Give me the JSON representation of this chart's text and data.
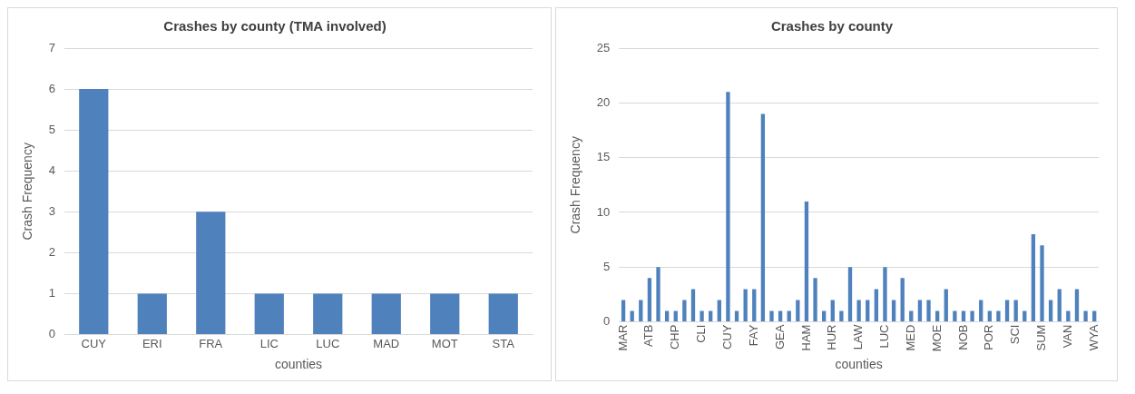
{
  "chart_data": [
    {
      "type": "bar",
      "title": "Crashes by county (TMA involved)",
      "xlabel": "counties",
      "ylabel": "Crash Frequency",
      "categories": [
        "CUY",
        "ERI",
        "FRA",
        "LIC",
        "LUC",
        "MAD",
        "MOT",
        "STA"
      ],
      "values": [
        6,
        1,
        3,
        1,
        1,
        1,
        1,
        1
      ],
      "color": "#4f81bd",
      "ylim": [
        0,
        7
      ],
      "yticks": [
        0,
        1,
        2,
        3,
        4,
        5,
        6,
        7
      ],
      "grid": "y",
      "legend": false
    },
    {
      "type": "bar",
      "title": "Crashes by county",
      "xlabel": "counties",
      "ylabel": "Crash Frequency",
      "categories": [
        "MAR",
        null,
        null,
        "ATB",
        null,
        null,
        "CHP",
        null,
        null,
        "CLI",
        null,
        null,
        "CUY",
        null,
        null,
        "FAY",
        null,
        null,
        "GEA",
        null,
        null,
        "HAM",
        null,
        null,
        "HUR",
        null,
        null,
        "LAW",
        null,
        null,
        "LUC",
        null,
        null,
        "MED",
        null,
        null,
        "MOE",
        null,
        null,
        "NOB",
        null,
        null,
        "POR",
        null,
        null,
        "SCI",
        null,
        null,
        "SUM",
        null,
        null,
        "VAN",
        null,
        null,
        "WYA"
      ],
      "values": [
        2,
        1,
        2,
        4,
        5,
        1,
        1,
        2,
        3,
        1,
        1,
        2,
        21,
        1,
        3,
        3,
        19,
        1,
        1,
        1,
        2,
        11,
        4,
        1,
        2,
        1,
        5,
        2,
        2,
        3,
        5,
        2,
        4,
        1,
        2,
        2,
        1,
        3,
        1,
        1,
        1,
        2,
        1,
        1,
        2,
        2,
        1,
        8,
        7,
        2,
        3,
        1,
        3,
        1,
        1
      ],
      "color": "#4f81bd",
      "ylim": [
        0,
        25
      ],
      "yticks": [
        0,
        5,
        10,
        15,
        20,
        25
      ],
      "grid": "y",
      "legend": false
    }
  ]
}
